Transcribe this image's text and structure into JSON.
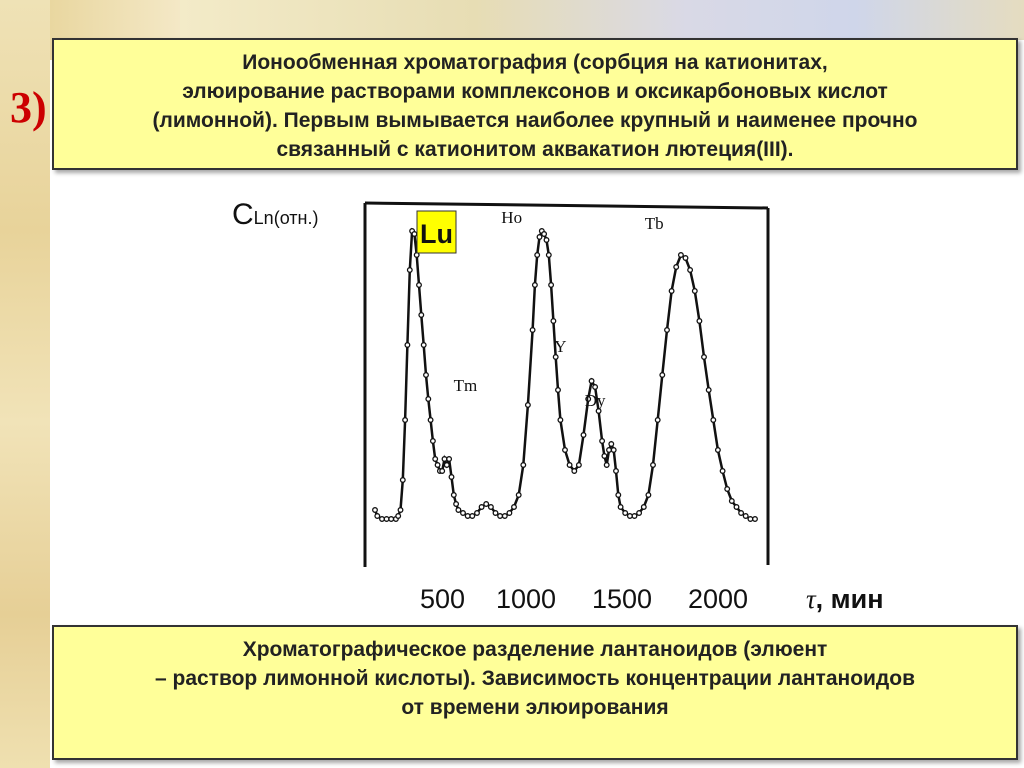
{
  "slide": {
    "number": "3)",
    "top_box_lines": [
      "Ионообменная хроматография (сорбция на катионитах,",
      "элюирование растворами комплексонов и оксикарбоновых кислот",
      "(лимонной). Первым вымывается наиболее крупный и наименее прочно",
      "связанный с катионитом аквакатион лютеция(III)."
    ],
    "bottom_box_lines": [
      "Хроматографическое разделение лантаноидов (элюент",
      "– раствор лимонной кислоты). Зависимость концентрации лантаноидов",
      "от времени элюирования"
    ]
  },
  "chart_data": {
    "type": "line",
    "ylabel_main": "C",
    "ylabel_sub": "Ln(отн.)",
    "xlabel_tau": "τ",
    "xlabel_unit": ", мин",
    "x_ticks": [
      "500",
      "1000",
      "1500",
      "2000"
    ],
    "highlight_label": "Lu",
    "highlight_color": "#ffff00",
    "peak_labels": [
      {
        "label": "Ho",
        "x": 590,
        "y": 98
      },
      {
        "label": "Tm",
        "x": 390,
        "y": 42
      },
      {
        "label": "Y",
        "x": 800,
        "y": 55
      },
      {
        "label": "Dy",
        "x": 950,
        "y": 37
      },
      {
        "label": "Tb",
        "x": 1205,
        "y": 96
      }
    ],
    "series": [
      {
        "values": [
          [
            0,
            5
          ],
          [
            10,
            3
          ],
          [
            30,
            2
          ],
          [
            50,
            2
          ],
          [
            70,
            2
          ],
          [
            90,
            2
          ],
          [
            100,
            3
          ],
          [
            110,
            5
          ],
          [
            120,
            15
          ],
          [
            130,
            35
          ],
          [
            140,
            60
          ],
          [
            150,
            85
          ],
          [
            160,
            98
          ],
          [
            170,
            97
          ],
          [
            180,
            90
          ],
          [
            190,
            80
          ],
          [
            200,
            70
          ],
          [
            210,
            60
          ],
          [
            220,
            50
          ],
          [
            230,
            42
          ],
          [
            240,
            35
          ],
          [
            250,
            28
          ],
          [
            260,
            22
          ],
          [
            270,
            20
          ],
          [
            280,
            18
          ],
          [
            290,
            18
          ],
          [
            300,
            22
          ],
          [
            310,
            20
          ],
          [
            320,
            22
          ],
          [
            330,
            16
          ],
          [
            340,
            10
          ],
          [
            350,
            7
          ],
          [
            360,
            5
          ],
          [
            380,
            4
          ],
          [
            400,
            3
          ],
          [
            420,
            3
          ],
          [
            440,
            4
          ],
          [
            460,
            6
          ],
          [
            480,
            7
          ],
          [
            500,
            6
          ],
          [
            520,
            4
          ],
          [
            540,
            3
          ],
          [
            560,
            3
          ],
          [
            580,
            4
          ],
          [
            600,
            6
          ],
          [
            620,
            10
          ],
          [
            640,
            20
          ],
          [
            660,
            40
          ],
          [
            680,
            65
          ],
          [
            690,
            80
          ],
          [
            700,
            90
          ],
          [
            710,
            96
          ],
          [
            720,
            98
          ],
          [
            730,
            97
          ],
          [
            740,
            95
          ],
          [
            750,
            90
          ],
          [
            760,
            80
          ],
          [
            770,
            68
          ],
          [
            780,
            56
          ],
          [
            790,
            45
          ],
          [
            800,
            35
          ],
          [
            820,
            25
          ],
          [
            840,
            20
          ],
          [
            860,
            18
          ],
          [
            880,
            20
          ],
          [
            900,
            30
          ],
          [
            920,
            42
          ],
          [
            935,
            48
          ],
          [
            950,
            46
          ],
          [
            965,
            38
          ],
          [
            980,
            28
          ],
          [
            990,
            23
          ],
          [
            1000,
            20
          ],
          [
            1010,
            25
          ],
          [
            1020,
            27
          ],
          [
            1030,
            25
          ],
          [
            1040,
            18
          ],
          [
            1050,
            10
          ],
          [
            1060,
            6
          ],
          [
            1080,
            4
          ],
          [
            1100,
            3
          ],
          [
            1120,
            3
          ],
          [
            1140,
            4
          ],
          [
            1160,
            6
          ],
          [
            1180,
            10
          ],
          [
            1200,
            20
          ],
          [
            1220,
            35
          ],
          [
            1240,
            50
          ],
          [
            1260,
            65
          ],
          [
            1280,
            78
          ],
          [
            1300,
            86
          ],
          [
            1320,
            90
          ],
          [
            1340,
            89
          ],
          [
            1360,
            85
          ],
          [
            1380,
            78
          ],
          [
            1400,
            68
          ],
          [
            1420,
            56
          ],
          [
            1440,
            45
          ],
          [
            1460,
            35
          ],
          [
            1480,
            25
          ],
          [
            1500,
            18
          ],
          [
            1520,
            12
          ],
          [
            1540,
            8
          ],
          [
            1560,
            6
          ],
          [
            1580,
            4
          ],
          [
            1600,
            3
          ],
          [
            1620,
            2
          ],
          [
            1640,
            2
          ]
        ]
      }
    ]
  }
}
